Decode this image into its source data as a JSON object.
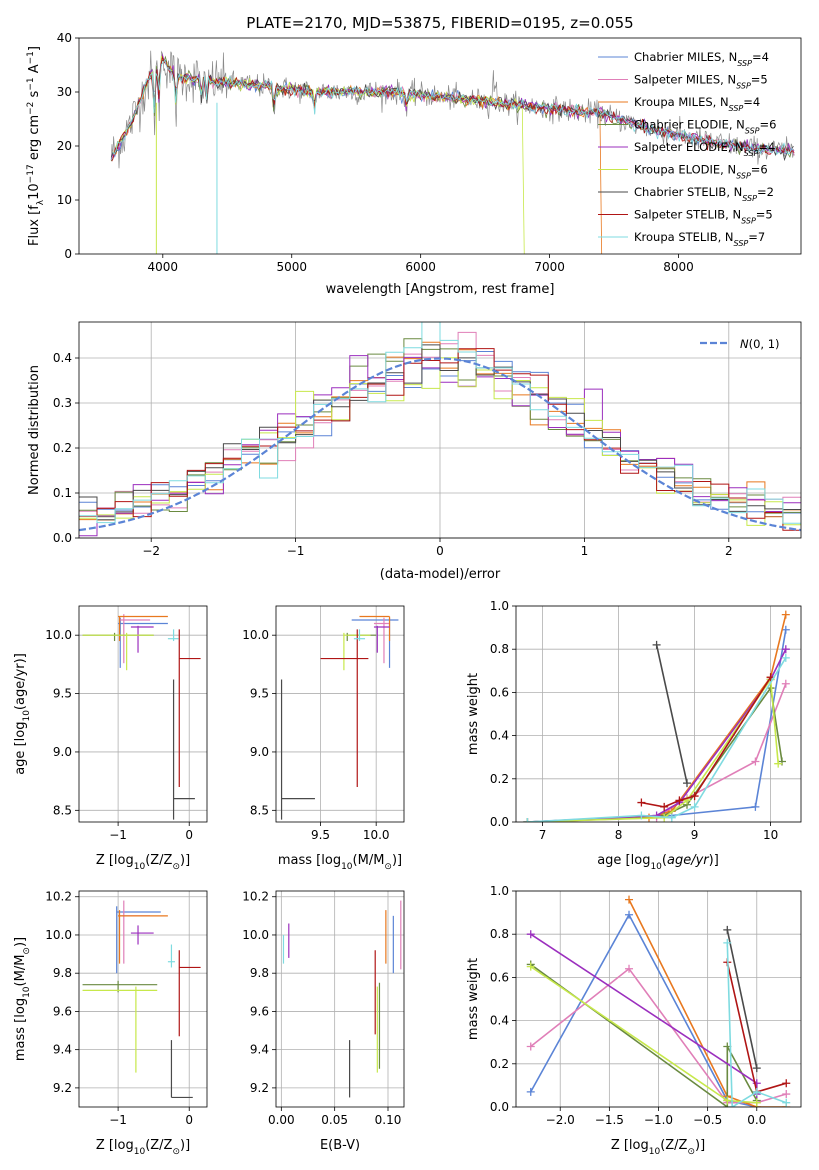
{
  "colors": {
    "Chabrier MILES": "#5b84d6",
    "Salpeter MILES": "#e07fb8",
    "Kroupa MILES": "#e8781f",
    "Chabrier ELODIE": "#6a8a40",
    "Salpeter ELODIE": "#9b2fbe",
    "Kroupa ELODIE": "#c7e84b",
    "Chabrier STELIB": "#4a4a4a",
    "Salpeter STELIB": "#b01515",
    "Kroupa STELIB": "#7fdbe0"
  },
  "legend_names": [
    {
      "key": "Chabrier MILES",
      "pre": "Chabrier MILES, N",
      "n": "4"
    },
    {
      "key": "Salpeter MILES",
      "pre": "Salpeter MILES, N",
      "n": "5"
    },
    {
      "key": "Kroupa MILES",
      "pre": "Kroupa MILES, N",
      "n": "4"
    },
    {
      "key": "Chabrier ELODIE",
      "pre": "Chabrier ELODIE, N",
      "n": "6"
    },
    {
      "key": "Salpeter ELODIE",
      "pre": "Salpeter ELODIE, N",
      "n": "4"
    },
    {
      "key": "Kroupa ELODIE",
      "pre": "Kroupa ELODIE, N",
      "n": "6"
    },
    {
      "key": "Chabrier STELIB",
      "pre": "Chabrier STELIB, N",
      "n": "2"
    },
    {
      "key": "Salpeter STELIB",
      "pre": "Salpeter STELIB, N",
      "n": "5"
    },
    {
      "key": "Kroupa STELIB",
      "pre": "Kroupa STELIB, N",
      "n": "7"
    }
  ],
  "chart_data": [
    {
      "id": "spectrum",
      "type": "line",
      "title": "PLATE=2170, MJD=53875, FIBERID=0195, z=0.055",
      "xlabel": "wavelength [Angstrom, rest frame]",
      "ylabel_pre": "Flux [f",
      "ylabel_post": "10",
      "ylabel_end": " erg cm",
      "ylabel_end2": " s",
      "ylabel_end3": " A",
      "xlim": [
        3350,
        8950
      ],
      "ylim": [
        0,
        40
      ],
      "xticks": [
        4000,
        5000,
        6000,
        7000,
        8000
      ],
      "yticks": [
        0,
        10,
        20,
        30,
        40
      ],
      "continuum": [
        [
          3600,
          18
        ],
        [
          3750,
          24
        ],
        [
          3900,
          33
        ],
        [
          4000,
          36
        ],
        [
          4100,
          33
        ],
        [
          4400,
          32
        ],
        [
          4800,
          31
        ],
        [
          5200,
          30
        ],
        [
          5800,
          30
        ],
        [
          6400,
          28.5
        ],
        [
          7000,
          27
        ],
        [
          7400,
          26
        ],
        [
          7800,
          23
        ],
        [
          8200,
          21
        ],
        [
          8600,
          19.5
        ],
        [
          8900,
          19
        ]
      ]
    },
    {
      "id": "residuals",
      "type": "histogram",
      "xlabel": "(data-model)/error",
      "ylabel": "Normed distribution",
      "xlim": [
        -2.5,
        2.5
      ],
      "ylim": [
        0,
        0.48
      ],
      "xticks": [
        -2,
        -1,
        0,
        1,
        2
      ],
      "yticks": [
        0.0,
        0.1,
        0.2,
        0.3,
        0.4
      ],
      "bins": 40,
      "gaussian_label": "N(0,1)",
      "gaussian_color": "#5b84d6"
    },
    {
      "id": "age_vs_Z",
      "type": "errorbar",
      "xlabel_pre": "Z [log",
      "xlabel_post": "(Z/Z",
      "ylabel_pre": "age  [log",
      "ylabel_post": "(age/yr)]",
      "xlim": [
        -1.55,
        0.25
      ],
      "ylim": [
        8.4,
        10.25
      ],
      "xticks": [
        -1,
        0
      ],
      "yticks": [
        8.5,
        9.0,
        9.5,
        10.0
      ],
      "points": [
        {
          "key": "Chabrier MILES",
          "x": -0.97,
          "y": 10.1,
          "x0": -1.0,
          "x1": -0.3,
          "y0": 9.72,
          "y1": 10.15
        },
        {
          "key": "Salpeter MILES",
          "x": -0.92,
          "y": 10.13,
          "x0": -0.98,
          "x1": -0.55,
          "y0": 9.76,
          "y1": 10.18
        },
        {
          "key": "Kroupa MILES",
          "x": -0.98,
          "y": 10.16,
          "x0": -1.0,
          "x1": -0.3,
          "y0": 9.95,
          "y1": 10.16
        },
        {
          "key": "Chabrier ELODIE",
          "x": -1.05,
          "y": 10.0,
          "x0": -1.5,
          "x1": -0.5,
          "y0": 9.95,
          "y1": 10.02
        },
        {
          "key": "Salpeter ELODIE",
          "x": -0.72,
          "y": 10.07,
          "x0": -0.82,
          "x1": -0.5,
          "y0": 9.85,
          "y1": 10.08
        },
        {
          "key": "Kroupa ELODIE",
          "x": -0.88,
          "y": 10.0,
          "x0": -1.5,
          "x1": -0.5,
          "y0": 9.7,
          "y1": 10.02
        },
        {
          "key": "Chabrier STELIB",
          "x": -0.22,
          "y": 8.6,
          "x0": -0.22,
          "x1": 0.08,
          "y0": 8.42,
          "y1": 9.62
        },
        {
          "key": "Salpeter STELIB",
          "x": -0.14,
          "y": 9.8,
          "x0": -0.14,
          "x1": 0.16,
          "y0": 8.7,
          "y1": 10.05
        },
        {
          "key": "Kroupa STELIB",
          "x": -0.22,
          "y": 9.97,
          "x0": -0.3,
          "x1": -0.15,
          "y0": 9.95,
          "y1": 10.05
        }
      ]
    },
    {
      "id": "age_vs_mass",
      "type": "errorbar",
      "xlabel_pre": "mass [log",
      "xlabel_post": "(M/M",
      "xlim": [
        9.1,
        10.25
      ],
      "ylim": [
        8.4,
        10.25
      ],
      "xticks": [
        9.5,
        10.0
      ],
      "yticks": [
        8.5,
        9.0,
        9.5,
        10.0
      ],
      "points": [
        {
          "key": "Chabrier MILES",
          "x": 10.12,
          "y": 10.13,
          "x0": 9.78,
          "x1": 10.2,
          "y0": 9.72,
          "y1": 10.15
        },
        {
          "key": "Salpeter MILES",
          "x": 10.07,
          "y": 10.1,
          "x0": 9.98,
          "x1": 10.12,
          "y0": 9.76,
          "y1": 10.15
        },
        {
          "key": "Kroupa MILES",
          "x": 10.12,
          "y": 10.16,
          "x0": 9.85,
          "x1": 10.12,
          "y0": 9.95,
          "y1": 10.16
        },
        {
          "key": "Chabrier ELODIE",
          "x": 9.74,
          "y": 10.0,
          "x0": 9.74,
          "x1": 10.0,
          "y0": 9.95,
          "y1": 10.02
        },
        {
          "key": "Salpeter ELODIE",
          "x": 10.01,
          "y": 10.07,
          "x0": 9.98,
          "x1": 10.12,
          "y0": 9.85,
          "y1": 10.08
        },
        {
          "key": "Kroupa ELODIE",
          "x": 9.71,
          "y": 10.0,
          "x0": 9.71,
          "x1": 9.95,
          "y0": 9.7,
          "y1": 10.02
        },
        {
          "key": "Chabrier STELIB",
          "x": 9.15,
          "y": 8.6,
          "x0": 9.15,
          "x1": 9.45,
          "y0": 8.42,
          "y1": 9.62
        },
        {
          "key": "Salpeter STELIB",
          "x": 9.83,
          "y": 9.8,
          "x0": 9.5,
          "x1": 9.93,
          "y0": 8.7,
          "y1": 10.05
        },
        {
          "key": "Kroupa STELIB",
          "x": 9.85,
          "y": 9.97,
          "x0": 9.8,
          "x1": 9.9,
          "y0": 9.95,
          "y1": 10.05
        }
      ]
    },
    {
      "id": "weight_vs_age",
      "type": "line",
      "xlabel_pre": "age  [log",
      "xlabel_post": "(age/yr)]",
      "ylabel": "mass weight",
      "xlim": [
        6.65,
        10.4
      ],
      "ylim": [
        0,
        1
      ],
      "xticks": [
        7,
        8,
        9,
        10
      ],
      "yticks": [
        0.0,
        0.2,
        0.4,
        0.6,
        0.8,
        1.0
      ],
      "series": [
        {
          "key": "Chabrier MILES",
          "x": [
            6.8,
            8.7,
            9.8,
            10.2
          ],
          "y": [
            0.0,
            0.03,
            0.07,
            0.89
          ]
        },
        {
          "key": "Salpeter MILES",
          "x": [
            6.8,
            8.5,
            8.9,
            9.8,
            10.2
          ],
          "y": [
            0.0,
            0.02,
            0.11,
            0.28,
            0.64
          ]
        },
        {
          "key": "Kroupa MILES",
          "x": [
            6.8,
            8.4,
            8.7,
            10.0,
            10.2
          ],
          "y": [
            0.0,
            0.02,
            0.05,
            0.67,
            0.96
          ]
        },
        {
          "key": "Chabrier ELODIE",
          "x": [
            6.8,
            8.6,
            8.9,
            10.0,
            10.15
          ],
          "y": [
            0.0,
            0.03,
            0.08,
            0.62,
            0.28
          ]
        },
        {
          "key": "Salpeter ELODIE",
          "x": [
            6.8,
            8.5,
            8.8,
            10.0,
            10.2
          ],
          "y": [
            0.0,
            0.03,
            0.09,
            0.66,
            0.8
          ]
        },
        {
          "key": "Kroupa ELODIE",
          "x": [
            6.8,
            8.6,
            8.9,
            10.0,
            10.1
          ],
          "y": [
            0.0,
            0.02,
            0.1,
            0.66,
            0.27
          ]
        },
        {
          "key": "Chabrier STELIB",
          "x": [
            8.5,
            8.9
          ],
          "y": [
            0.82,
            0.18
          ]
        },
        {
          "key": "Salpeter STELIB",
          "x": [
            8.3,
            8.6,
            8.8,
            9.0,
            10.0
          ],
          "y": [
            0.09,
            0.07,
            0.1,
            0.12,
            0.67
          ]
        },
        {
          "key": "Kroupa STELIB",
          "x": [
            6.8,
            8.3,
            8.7,
            9.0,
            10.2
          ],
          "y": [
            0.0,
            0.03,
            0.02,
            0.07,
            0.76
          ]
        }
      ]
    },
    {
      "id": "mass_vs_Z",
      "type": "errorbar",
      "xlabel_pre": "Z [log",
      "xlabel_post": "(Z/Z",
      "ylabel_pre": "mass [log",
      "ylabel_post": "(M/M",
      "xlim": [
        -1.55,
        0.25
      ],
      "ylim": [
        9.1,
        10.23
      ],
      "xticks": [
        -1,
        0
      ],
      "yticks": [
        9.2,
        9.4,
        9.6,
        9.8,
        10.0,
        10.2
      ],
      "points": [
        {
          "key": "Chabrier MILES",
          "x": -1.02,
          "y": 10.12,
          "x0": -1.02,
          "x1": -0.4,
          "y0": 9.8,
          "y1": 10.15
        },
        {
          "key": "Salpeter MILES",
          "x": -0.92,
          "y": 10.1,
          "x0": -0.98,
          "x1": -0.55,
          "y0": 9.85,
          "y1": 10.18
        },
        {
          "key": "Kroupa MILES",
          "x": -0.98,
          "y": 10.1,
          "x0": -1.0,
          "x1": -0.3,
          "y0": 9.85,
          "y1": 10.13
        },
        {
          "key": "Chabrier ELODIE",
          "x": -1.0,
          "y": 9.74,
          "x0": -1.5,
          "x1": -0.45,
          "y0": 9.7,
          "y1": 9.76
        },
        {
          "key": "Salpeter ELODIE",
          "x": -0.72,
          "y": 10.01,
          "x0": -0.82,
          "x1": -0.5,
          "y0": 9.95,
          "y1": 10.05
        },
        {
          "key": "Kroupa ELODIE",
          "x": -0.75,
          "y": 9.71,
          "x0": -1.5,
          "x1": -0.45,
          "y0": 9.28,
          "y1": 9.73
        },
        {
          "key": "Chabrier STELIB",
          "x": -0.25,
          "y": 9.15,
          "x0": -0.25,
          "x1": 0.05,
          "y0": 9.15,
          "y1": 9.45
        },
        {
          "key": "Salpeter STELIB",
          "x": -0.14,
          "y": 9.83,
          "x0": -0.14,
          "x1": 0.16,
          "y0": 9.47,
          "y1": 9.92
        },
        {
          "key": "Kroupa STELIB",
          "x": -0.25,
          "y": 9.86,
          "x0": -0.3,
          "x1": -0.2,
          "y0": 9.83,
          "y1": 9.95
        }
      ]
    },
    {
      "id": "mass_vs_EBV",
      "type": "errorbar",
      "xlabel": "E(B-V)",
      "xlim": [
        -0.005,
        0.115
      ],
      "ylim": [
        9.1,
        10.23
      ],
      "xticks": [
        0.0,
        0.05,
        0.1
      ],
      "yticks": [
        9.2,
        9.4,
        9.6,
        9.8,
        10.0,
        10.2
      ],
      "points": [
        {
          "key": "Chabrier MILES",
          "x": 0.105,
          "y": 9.8,
          "x0": 0.105,
          "x1": 0.105,
          "y0": 9.8,
          "y1": 10.1
        },
        {
          "key": "Salpeter MILES",
          "x": 0.112,
          "y": 9.9,
          "x0": 0.112,
          "x1": 0.112,
          "y0": 9.82,
          "y1": 10.18
        },
        {
          "key": "Kroupa MILES",
          "x": 0.098,
          "y": 9.85,
          "x0": 0.098,
          "x1": 0.098,
          "y0": 9.85,
          "y1": 10.13
        },
        {
          "key": "Chabrier ELODIE",
          "x": 0.092,
          "y": 9.3,
          "x0": 0.092,
          "x1": 0.092,
          "y0": 9.3,
          "y1": 9.75
        },
        {
          "key": "Salpeter ELODIE",
          "x": 0.007,
          "y": 9.9,
          "x0": 0.007,
          "x1": 0.007,
          "y0": 9.88,
          "y1": 10.06
        },
        {
          "key": "Kroupa ELODIE",
          "x": 0.09,
          "y": 9.28,
          "x0": 0.09,
          "x1": 0.09,
          "y0": 9.28,
          "y1": 9.73
        },
        {
          "key": "Chabrier STELIB",
          "x": 0.064,
          "y": 9.15,
          "x0": 0.064,
          "x1": 0.064,
          "y0": 9.15,
          "y1": 9.45
        },
        {
          "key": "Salpeter STELIB",
          "x": 0.088,
          "y": 9.48,
          "x0": 0.088,
          "x1": 0.088,
          "y0": 9.48,
          "y1": 9.92
        },
        {
          "key": "Kroupa STELIB",
          "x": 0.002,
          "y": 9.85,
          "x0": 0.002,
          "x1": 0.002,
          "y0": 9.85,
          "y1": 10.0
        }
      ]
    },
    {
      "id": "weight_vs_Z",
      "type": "line",
      "xlabel_pre": "Z [log",
      "xlabel_post": "(Z/Z",
      "ylabel": "mass weight",
      "xlim": [
        -2.45,
        0.45
      ],
      "ylim": [
        0,
        1
      ],
      "xticks": [
        -2.0,
        -1.5,
        -1.0,
        -0.5,
        0.0
      ],
      "yticks": [
        0.0,
        0.2,
        0.4,
        0.6,
        0.8,
        1.0
      ],
      "series": [
        {
          "key": "Chabrier MILES",
          "x": [
            -2.3,
            -1.3,
            -0.3,
            0.0
          ],
          "y": [
            0.07,
            0.89,
            0.03,
            0.0
          ]
        },
        {
          "key": "Salpeter MILES",
          "x": [
            -2.3,
            -1.3,
            -0.3,
            0.0,
            0.3
          ],
          "y": [
            0.28,
            0.64,
            0.02,
            0.02,
            0.06
          ]
        },
        {
          "key": "Kroupa MILES",
          "x": [
            -1.3,
            -0.3,
            0.0,
            0.3
          ],
          "y": [
            0.96,
            0.05,
            0.0,
            0.0
          ]
        },
        {
          "key": "Chabrier ELODIE",
          "x": [
            -2.3,
            -0.3,
            -0.3,
            0.0
          ],
          "y": [
            0.66,
            0.0,
            0.28,
            0.03
          ]
        },
        {
          "key": "Salpeter ELODIE",
          "x": [
            -2.3,
            0.0,
            0.0
          ],
          "y": [
            0.8,
            0.11,
            0.06
          ]
        },
        {
          "key": "Kroupa ELODIE",
          "x": [
            -2.3,
            -0.3,
            0.0
          ],
          "y": [
            0.65,
            0.03,
            0.02
          ]
        },
        {
          "key": "Chabrier STELIB",
          "x": [
            -0.3,
            0.0
          ],
          "y": [
            0.82,
            0.18
          ]
        },
        {
          "key": "Salpeter STELIB",
          "x": [
            -0.3,
            0.0,
            0.3
          ],
          "y": [
            0.67,
            0.07,
            0.11
          ]
        },
        {
          "key": "Kroupa STELIB",
          "x": [
            -0.3,
            -0.25,
            0.0,
            0.3
          ],
          "y": [
            0.76,
            0.0,
            0.07,
            0.02
          ]
        }
      ]
    }
  ]
}
